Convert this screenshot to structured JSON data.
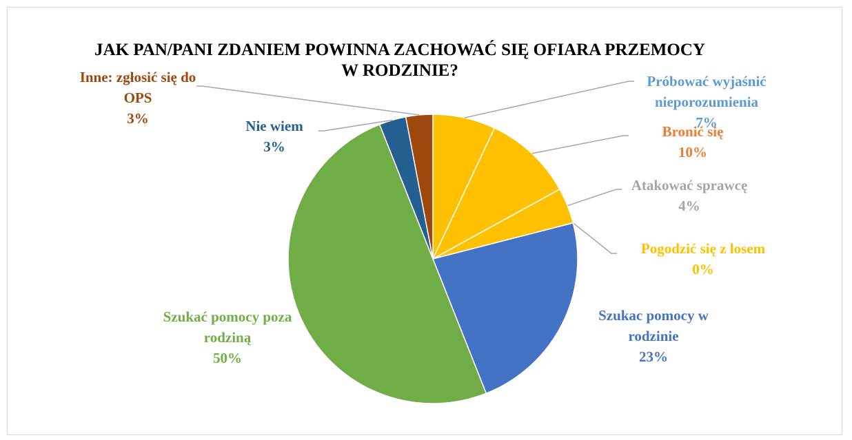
{
  "chart_data": {
    "type": "pie",
    "title": "JAK PAN/PANI ZDANIEM POWINNA ZACHOWAĆ SIĘ OFIARA PRZEMOCY W RODZINIE?",
    "categories": [
      "Próbować wyjaśnić nieporozumienia",
      "Bronić się",
      "Atakować sprawcę",
      "Pogodzić się z losem",
      "Szukac pomocy w rodzinie",
      "Szukać pomocy poza rodziną",
      "Nie wiem",
      "Inne: zgłosić się do OPS"
    ],
    "values": [
      7,
      10,
      4,
      0,
      23,
      50,
      3,
      3
    ],
    "value_labels": [
      "7%",
      "10%",
      "4%",
      "0%",
      "23%",
      "50%",
      "3%",
      "3%"
    ],
    "colors": [
      "#FFC000",
      "#FFC000",
      "#FFC000",
      "#FFC000",
      "#4472C4",
      "#70AD47",
      "#255E91",
      "#9E480E"
    ],
    "label_colors": [
      "#5B9BD5",
      "#ED7D31",
      "#A5A5A5",
      "#FFC000",
      "#4472C4",
      "#70AD47",
      "#255E91",
      "#9E480E"
    ]
  }
}
